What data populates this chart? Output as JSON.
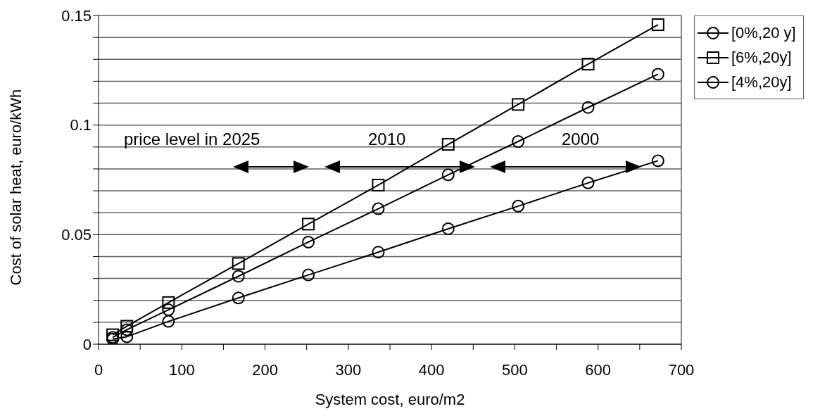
{
  "chart_data": {
    "type": "line",
    "xlabel": "System cost, euro/m2",
    "ylabel": "Cost of solar heat, euro/kWh",
    "xlim": [
      0,
      700
    ],
    "xticks": [
      0,
      {
        "value": 50,
        "label": null
      },
      100,
      {
        "value": 150,
        "label": null
      },
      200,
      {
        "value": 250,
        "label": null
      },
      300,
      {
        "value": 350,
        "label": null
      },
      400,
      {
        "value": 450,
        "label": null
      },
      500,
      {
        "value": 550,
        "label": null
      },
      600,
      {
        "value": 650,
        "label": null
      },
      700
    ],
    "ylim": [
      0,
      0.15
    ],
    "yticks": [
      0,
      {
        "value": 0.01,
        "label": null
      },
      {
        "value": 0.02,
        "label": null
      },
      {
        "value": 0.03,
        "label": null
      },
      {
        "value": 0.04,
        "label": null
      },
      0.05,
      {
        "value": 0.06,
        "label": null
      },
      {
        "value": 0.07,
        "label": null
      },
      {
        "value": 0.08,
        "label": null
      },
      {
        "value": 0.09,
        "label": null
      },
      0.1,
      {
        "value": 0.11,
        "label": null
      },
      {
        "value": 0.12,
        "label": null
      },
      {
        "value": 0.13,
        "label": null
      },
      {
        "value": 0.14,
        "label": null
      },
      0.15
    ],
    "grid": "y",
    "legend": "top right",
    "line_style": "solid",
    "x": [
      17,
      34,
      84,
      168,
      252,
      336,
      420,
      504,
      588,
      672
    ],
    "series": [
      {
        "name": "[0%,20 y]",
        "color": "#000000",
        "marker": "circle",
        "values": [
          0.0023,
          0.0034,
          0.0104,
          0.0211,
          0.0316,
          0.042,
          0.0527,
          0.063,
          0.0736,
          0.0837
        ]
      },
      {
        "name": "[6%,20y]",
        "color": "#000000",
        "marker": "square",
        "values": [
          0.0043,
          0.0082,
          0.019,
          0.0368,
          0.0548,
          0.0726,
          0.0912,
          0.1094,
          0.1278,
          0.1458
        ]
      },
      {
        "name": "[4%,20y]",
        "color": "#000000",
        "marker": "circle",
        "values": [
          0.0031,
          0.0066,
          0.0157,
          0.031,
          0.0466,
          0.0618,
          0.0773,
          0.0925,
          0.108,
          0.1232
        ]
      }
    ],
    "annotations": [
      "price level in 2025",
      "2010",
      "2000"
    ]
  }
}
